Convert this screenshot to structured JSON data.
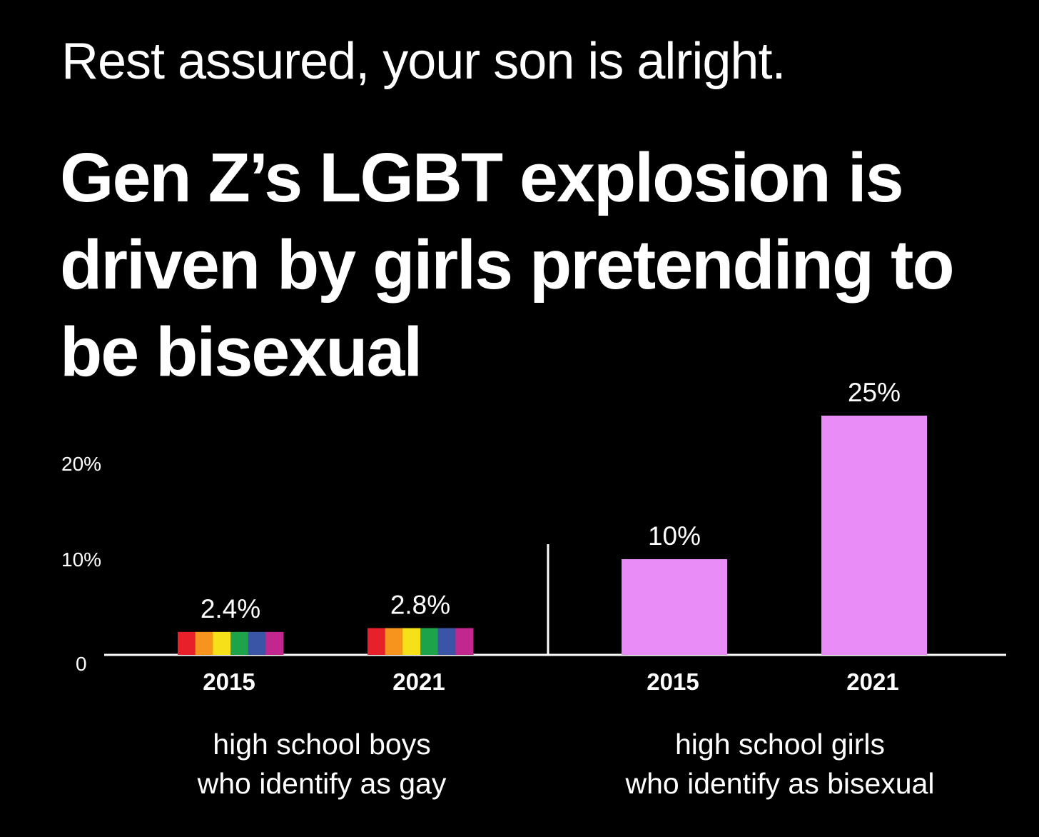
{
  "header": {
    "subtitle": "Rest assured, your son is alright.",
    "title": "Gen Z’s LGBT explosion is driven by girls pretending to be bisexual"
  },
  "chart_data": {
    "type": "bar",
    "yticks": [
      "0",
      "10%",
      "20%"
    ],
    "ylim": [
      0,
      26
    ],
    "groups": [
      {
        "label_lines": [
          "high school boys",
          "who identify as gay"
        ],
        "style": "rainbow",
        "bars": [
          {
            "category": "2015",
            "value": 2.4,
            "label": "2.4%"
          },
          {
            "category": "2021",
            "value": 2.8,
            "label": "2.8%"
          }
        ]
      },
      {
        "label_lines": [
          "high school girls",
          "who identify as bisexual"
        ],
        "style": "solid",
        "bars": [
          {
            "category": "2015",
            "value": 10,
            "label": "10%"
          },
          {
            "category": "2021",
            "value": 25,
            "label": "25%"
          }
        ]
      }
    ],
    "colors": {
      "background": "#000000",
      "solid_bar": "#ea8cf8",
      "rainbow": [
        "#e8202a",
        "#f7941d",
        "#f5e01a",
        "#1da34a",
        "#3a55a5",
        "#c2278f"
      ]
    }
  }
}
